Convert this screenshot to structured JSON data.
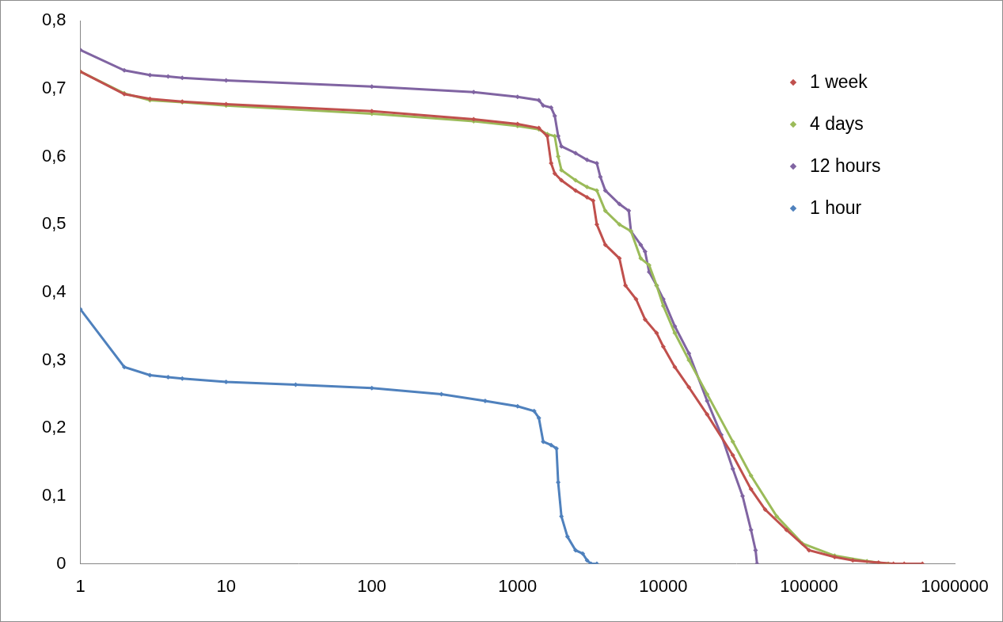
{
  "chart_data": {
    "type": "line",
    "log": "x",
    "grid": false,
    "legend": "upper right",
    "marker": "diamond",
    "line_style": "solid",
    "xlim": [
      1,
      1000000
    ],
    "xticks": [
      1,
      10,
      100,
      1000,
      10000,
      100000,
      1000000
    ],
    "ylim": [
      0,
      0.8
    ],
    "yticks": [
      0,
      {
        "value": 0.1,
        "label": "0,1"
      },
      {
        "value": 0.2,
        "label": "0,2"
      },
      {
        "value": 0.3,
        "label": "0,3"
      },
      {
        "value": 0.4,
        "label": "0,4"
      },
      {
        "value": 0.5,
        "label": "0,5"
      },
      {
        "value": 0.6,
        "label": "0,6"
      },
      {
        "value": 0.7,
        "label": "0,7"
      },
      {
        "value": 0.8,
        "label": "0,8"
      }
    ],
    "series": [
      {
        "name": "1 week",
        "color": "#c0504d",
        "x": [
          1,
          2,
          3,
          5,
          10,
          100,
          500,
          1000,
          1400,
          1600,
          1700,
          1800,
          2000,
          2500,
          3000,
          3300,
          3500,
          4000,
          5000,
          5500,
          6500,
          7500,
          9000,
          10000,
          12000,
          15000,
          20000,
          30000,
          40000,
          50000,
          70000,
          100000,
          150000,
          200000,
          300000,
          380000,
          450000,
          600000
        ],
        "values": [
          0.725,
          0.692,
          0.685,
          0.681,
          0.677,
          0.667,
          0.655,
          0.648,
          0.642,
          0.63,
          0.59,
          0.575,
          0.565,
          0.55,
          0.54,
          0.535,
          0.5,
          0.47,
          0.45,
          0.41,
          0.39,
          0.36,
          0.34,
          0.32,
          0.29,
          0.26,
          0.22,
          0.16,
          0.11,
          0.08,
          0.05,
          0.02,
          0.01,
          0.005,
          0.002,
          0,
          0,
          0
        ]
      },
      {
        "name": "4 days",
        "color": "#9bbb59",
        "x": [
          1,
          2,
          3,
          5,
          10,
          100,
          500,
          1000,
          1400,
          1600,
          1800,
          1900,
          2000,
          2500,
          3000,
          3500,
          4000,
          5000,
          6000,
          7000,
          8000,
          9000,
          10000,
          12000,
          15000,
          20000,
          30000,
          40000,
          60000,
          90000,
          150000,
          250000,
          350000
        ],
        "values": [
          0.725,
          0.693,
          0.683,
          0.68,
          0.675,
          0.663,
          0.652,
          0.645,
          0.64,
          0.633,
          0.63,
          0.6,
          0.58,
          0.565,
          0.555,
          0.55,
          0.52,
          0.5,
          0.49,
          0.45,
          0.44,
          0.41,
          0.38,
          0.34,
          0.3,
          0.25,
          0.18,
          0.13,
          0.07,
          0.03,
          0.012,
          0.004,
          0
        ]
      },
      {
        "name": "12 hours",
        "color": "#8064a2",
        "x": [
          1,
          2,
          3,
          4,
          5,
          10,
          100,
          500,
          1000,
          1400,
          1500,
          1700,
          1800,
          1900,
          2000,
          2500,
          3000,
          3500,
          3700,
          4000,
          5000,
          5800,
          6000,
          7000,
          7500,
          8000,
          9000,
          10000,
          12000,
          15000,
          20000,
          25000,
          30000,
          35000,
          40000,
          43000,
          44000
        ],
        "values": [
          0.757,
          0.727,
          0.72,
          0.718,
          0.716,
          0.712,
          0.703,
          0.695,
          0.688,
          0.683,
          0.675,
          0.672,
          0.66,
          0.63,
          0.615,
          0.605,
          0.595,
          0.59,
          0.57,
          0.55,
          0.53,
          0.52,
          0.49,
          0.47,
          0.46,
          0.43,
          0.41,
          0.39,
          0.35,
          0.31,
          0.24,
          0.19,
          0.14,
          0.1,
          0.05,
          0.02,
          0
        ]
      },
      {
        "name": "1 hour",
        "color": "#4f81bd",
        "x": [
          1,
          2,
          3,
          4,
          5,
          10,
          30,
          100,
          300,
          600,
          1000,
          1300,
          1400,
          1500,
          1700,
          1850,
          1900,
          2000,
          2200,
          2500,
          2800,
          3000,
          3200,
          3500
        ],
        "values": [
          0.375,
          0.29,
          0.278,
          0.275,
          0.273,
          0.268,
          0.264,
          0.259,
          0.25,
          0.24,
          0.232,
          0.225,
          0.215,
          0.18,
          0.175,
          0.17,
          0.12,
          0.07,
          0.04,
          0.02,
          0.015,
          0.005,
          0,
          0
        ]
      }
    ]
  }
}
